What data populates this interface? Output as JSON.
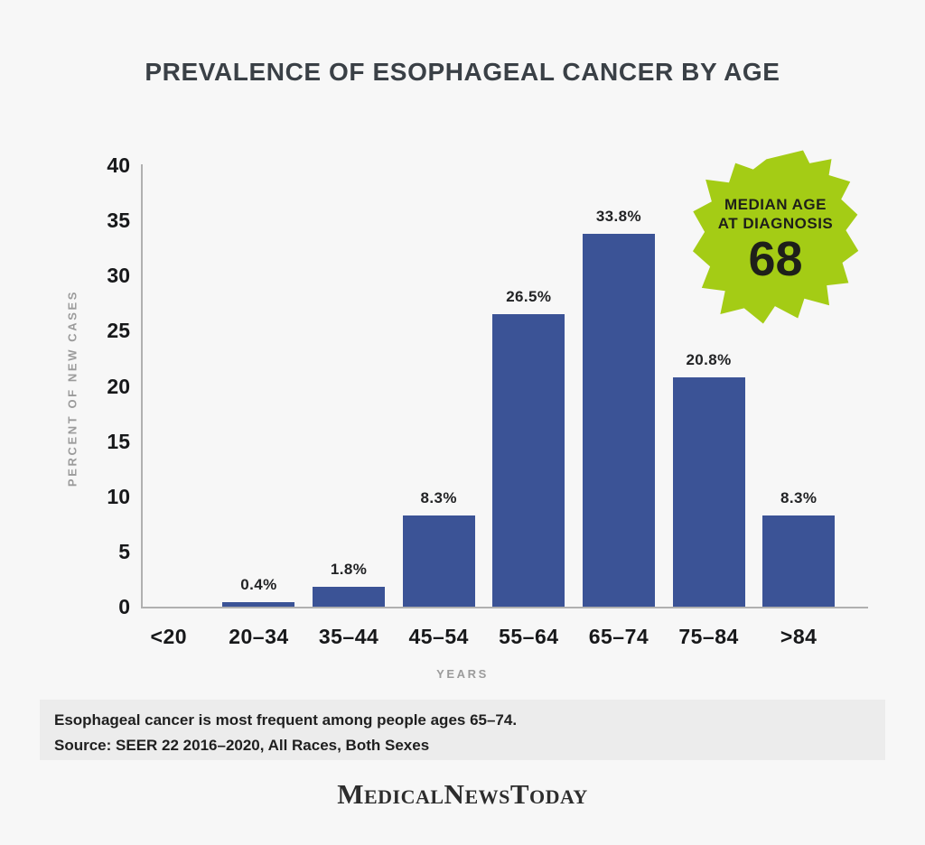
{
  "title": "PREVALENCE OF ESOPHAGEAL CANCER BY AGE",
  "chart_data": {
    "type": "bar",
    "title": "PREVALENCE OF ESOPHAGEAL CANCER BY AGE",
    "categories": [
      "<20",
      "20–34",
      "35–44",
      "45–54",
      "55–64",
      "65–74",
      "75–84",
      ">84"
    ],
    "values": [
      0,
      0.4,
      1.8,
      8.3,
      26.5,
      33.8,
      20.8,
      8.3
    ],
    "bar_labels": [
      "",
      "0.4%",
      "1.8%",
      "8.3%",
      "26.5%",
      "33.8%",
      "20.8%",
      "8.3%"
    ],
    "xlabel": "YEARS",
    "ylabel": "PERCENT OF NEW CASES",
    "ylim": [
      0,
      40
    ],
    "yticks": [
      0,
      5,
      10,
      15,
      20,
      25,
      30,
      35,
      40
    ],
    "grid": false,
    "legend": null,
    "bar_color": "#3b5396",
    "annotation": {
      "line1": "MEDIAN AGE",
      "line2": "AT DIAGNOSIS",
      "value": "68",
      "background": "#a4cc15",
      "text_color": "#1e1f1a"
    }
  },
  "footer": {
    "note": "Esophageal cancer is most frequent among people ages 65–74.",
    "source": "Source: SEER 22 2016–2020, All Races, Both Sexes"
  },
  "logo_text": "MedicalNewsToday",
  "colors": {
    "page_background": "#f7f7f7",
    "note_band_background": "#ececec",
    "axis_line": "#b0b0b0",
    "tick_text": "#17181a",
    "muted_label_text": "#9b9b9b",
    "title_text": "#3a4046"
  }
}
